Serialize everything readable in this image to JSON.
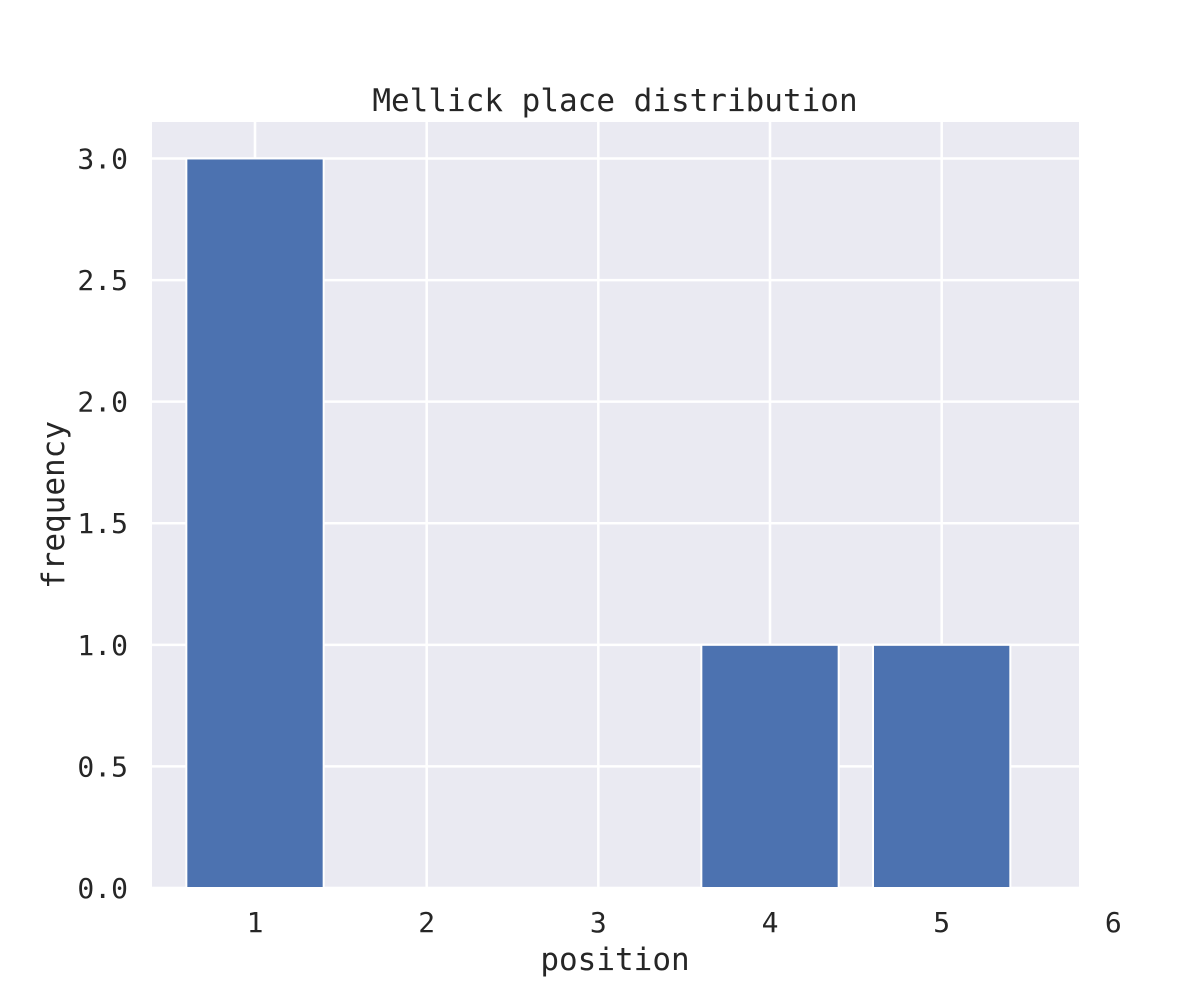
{
  "chart_data": {
    "type": "bar",
    "title": "Mellick place distribution",
    "xlabel": "position",
    "ylabel": "frequency",
    "x": [
      1,
      2,
      3,
      4,
      5
    ],
    "values": [
      3,
      0,
      0,
      1,
      1
    ],
    "xlim": [
      0.4,
      5.8
    ],
    "ylim": [
      0,
      3.15
    ],
    "xticks": [
      "1",
      "2",
      "3",
      "4",
      "5",
      "6"
    ],
    "yticks": [
      "0.0",
      "0.5",
      "1.0",
      "1.5",
      "2.0",
      "2.5",
      "3.0"
    ],
    "bar_width": 0.8,
    "grid": true,
    "legend": "none",
    "colors": {
      "bar": "#4c72b0",
      "plot_background": "#eaeaf2",
      "grid": "#ffffff",
      "text": "#262626"
    }
  }
}
